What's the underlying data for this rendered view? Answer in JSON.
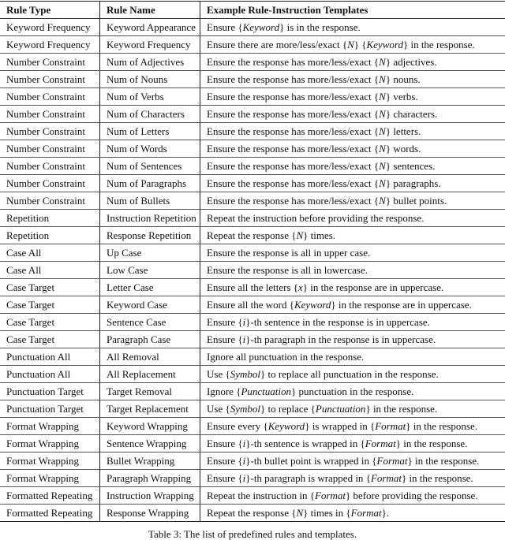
{
  "headers": [
    "Rule Type",
    "Rule Name",
    "Example Rule-Instruction Templates"
  ],
  "rows": [
    [
      "Keyword Frequency",
      "Keyword Appearance",
      "Ensure {Keyword} is in the response."
    ],
    [
      "Keyword Frequency",
      "Keyword Frequency",
      "Ensure there are more/less/exact {N} {Keyword} in the response."
    ],
    [
      "Number Constraint",
      "Num of Adjectives",
      "Ensure the response has more/less/exact {N} adjectives."
    ],
    [
      "Number Constraint",
      "Num of Nouns",
      "Ensure the response has more/less/exact {N} nouns."
    ],
    [
      "Number Constraint",
      "Num of Verbs",
      "Ensure the response has more/less/exact {N} verbs."
    ],
    [
      "Number Constraint",
      "Num of Characters",
      "Ensure the response has more/less/exact {N} characters."
    ],
    [
      "Number Constraint",
      "Num of Letters",
      "Ensure the response has more/less/exact {N} letters."
    ],
    [
      "Number Constraint",
      "Num of Words",
      "Ensure the response has more/less/exact {N} words."
    ],
    [
      "Number Constraint",
      "Num of Sentences",
      "Ensure the response has more/less/exact {N} sentences."
    ],
    [
      "Number Constraint",
      "Num of Paragraphs",
      "Ensure the response has more/less/exact {N} paragraphs."
    ],
    [
      "Number Constraint",
      "Num of Bullets",
      "Ensure the response has more/less/exact {N} bullet points."
    ],
    [
      "Repetition",
      "Instruction Repetition",
      "Repeat the instruction before providing the response."
    ],
    [
      "Repetition",
      "Response Repetition",
      "Repeat the response {N} times."
    ],
    [
      "Case All",
      "Up Case",
      "Ensure the response is all in upper case."
    ],
    [
      "Case All",
      "Low Case",
      "Ensure the response is all in lowercase."
    ],
    [
      "Case Target",
      "Letter Case",
      "Ensure all the letters {x} in the response are in uppercase."
    ],
    [
      "Case Target",
      "Keyword Case",
      "Ensure all the word {Keyword} in the response are in uppercase."
    ],
    [
      "Case Target",
      "Sentence Case",
      "Ensure {i}-th sentence in the response is in uppercase."
    ],
    [
      "Case Target",
      "Paragraph Case",
      "Ensure {i}-th paragraph in the response is in uppercase."
    ],
    [
      "Punctuation All",
      "All Removal",
      "Ignore all punctuation in the response."
    ],
    [
      "Punctuation All",
      "All Replacement",
      "Use {Symbol} to replace all punctuation in the response."
    ],
    [
      "Punctuation Target",
      "Target Removal",
      "Ignore {Punctuation} punctuation in the response."
    ],
    [
      "Punctuation Target",
      "Target Replacement",
      "Use {Symbol} to replace {Punctuation} in the response."
    ],
    [
      "Format Wrapping",
      "Keyword Wrapping",
      "Ensure every {Keyword} is wrapped in {Format} in the response."
    ],
    [
      "Format Wrapping",
      "Sentence Wrapping",
      "Ensure {i}-th sentence is wrapped in {Format} in the response."
    ],
    [
      "Format Wrapping",
      "Bullet Wrapping",
      "Ensure {i}-th bullet point is wrapped in {Format} in the response."
    ],
    [
      "Format Wrapping",
      "Paragraph Wrapping",
      "Ensure {i}-th paragraph is wrapped in {Format} in the response."
    ],
    [
      "Formatted Repeating",
      "Instruction Wrapping",
      "Repeat the instruction in {Format} before providing the response."
    ],
    [
      "Formatted Repeating",
      "Response Wrapping",
      "Repeat the response {N} times in {Format}."
    ]
  ],
  "caption": "Table 3: The list of predefined rules and templates."
}
